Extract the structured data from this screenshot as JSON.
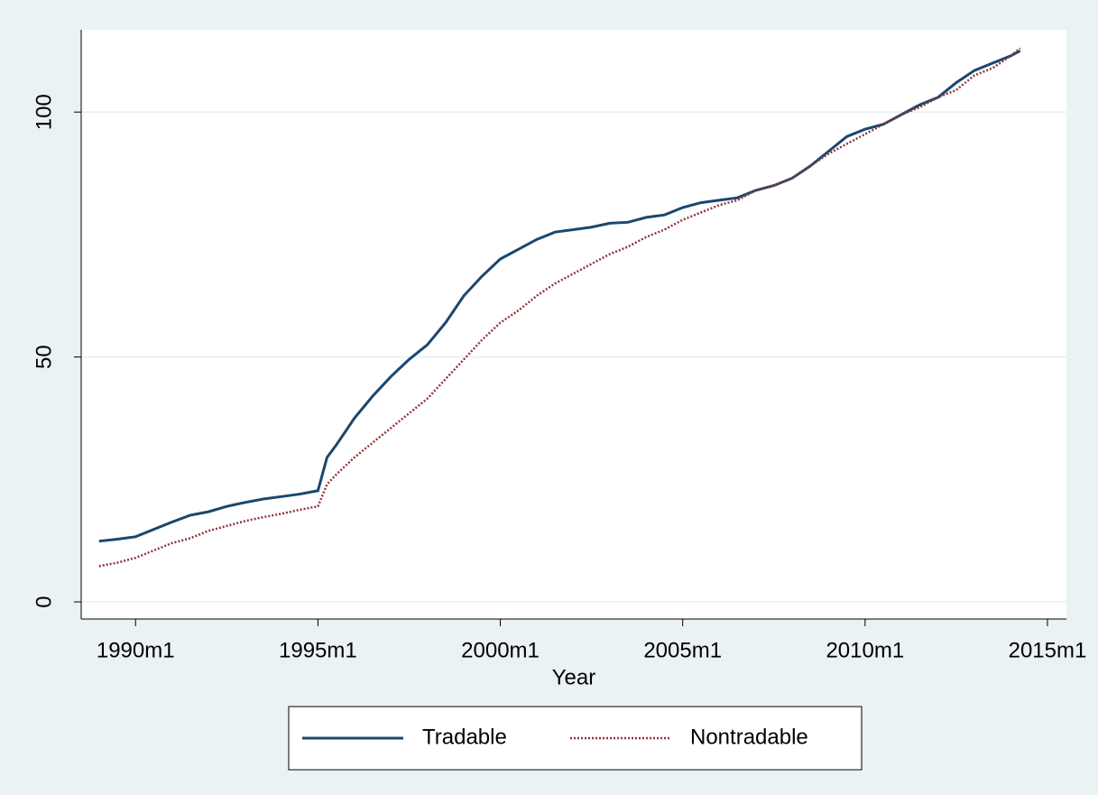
{
  "chart_data": {
    "type": "line",
    "x_label": "Year",
    "x": [
      1989.0,
      1989.5,
      1990.0,
      1990.5,
      1991.0,
      1991.5,
      1992.0,
      1992.5,
      1993.0,
      1993.5,
      1994.0,
      1994.5,
      1995.0,
      1995.25,
      1995.5,
      1996.0,
      1996.5,
      1997.0,
      1997.5,
      1998.0,
      1998.5,
      1999.0,
      1999.5,
      2000.0,
      2000.5,
      2001.0,
      2001.5,
      2002.0,
      2002.5,
      2003.0,
      2003.5,
      2004.0,
      2004.5,
      2005.0,
      2005.5,
      2006.0,
      2006.5,
      2007.0,
      2007.5,
      2008.0,
      2008.5,
      2009.0,
      2009.5,
      2010.0,
      2010.5,
      2011.0,
      2011.5,
      2012.0,
      2012.5,
      2013.0,
      2013.5,
      2014.0,
      2014.25
    ],
    "series": [
      {
        "name": "Tradable",
        "color": "#1a476f",
        "dash": "solid",
        "values": [
          12.4,
          12.8,
          13.3,
          14.8,
          16.3,
          17.7,
          18.4,
          19.5,
          20.3,
          21.0,
          21.5,
          22.0,
          22.7,
          29.5,
          32,
          37.5,
          42,
          46,
          49.5,
          52.5,
          57,
          62.5,
          66.5,
          70,
          72,
          74,
          75.5,
          76,
          76.5,
          77.3,
          77.5,
          78.5,
          79,
          80.5,
          81.5,
          82,
          82.5,
          84,
          85,
          86.5,
          89,
          92,
          95,
          96.5,
          97.5,
          99.5,
          101.5,
          103,
          106,
          108.5,
          110,
          111.5,
          112.5
        ]
      },
      {
        "name": "Nontradable",
        "color": "#90353b",
        "dash": "dotted",
        "values": [
          7.3,
          8.0,
          9.0,
          10.5,
          12,
          13,
          14.5,
          15.5,
          16.5,
          17.3,
          18,
          18.8,
          19.5,
          24,
          26,
          29.5,
          32.5,
          35.5,
          38.5,
          41.5,
          45.5,
          49.5,
          53.5,
          57,
          59.5,
          62.5,
          65,
          67,
          69,
          71,
          72.5,
          74.5,
          76,
          78,
          79.5,
          81,
          82,
          84,
          85,
          86.5,
          89,
          91.5,
          93.5,
          95.5,
          97.5,
          99.5,
          101,
          103,
          104.5,
          107.5,
          109,
          111.5,
          113
        ]
      }
    ],
    "xlim": [
      1988.51,
      2015.52
    ],
    "xticks": [
      {
        "value": 1990,
        "label": "1990m1"
      },
      {
        "value": 1995,
        "label": "1995m1"
      },
      {
        "value": 2000,
        "label": "2000m1"
      },
      {
        "value": 2005,
        "label": "2005m1"
      },
      {
        "value": 2010,
        "label": "2010m1"
      },
      {
        "value": 2015,
        "label": "2015m1"
      }
    ],
    "ylim": [
      -3.5,
      116.8
    ],
    "yticks": [
      0,
      50,
      100
    ],
    "grid": true,
    "legend": "bottom"
  }
}
